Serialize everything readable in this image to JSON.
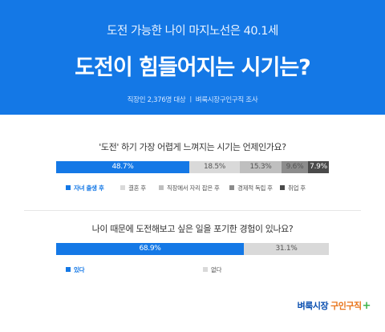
{
  "header": {
    "subtitle": "도전 가능한 나이 마지노선은 40.1세",
    "title": "도전이 힘들어지는 시기는?",
    "source": "직장인 2,376명 대상  ㅣ  벼룩시장구인구직 조사"
  },
  "colors": {
    "banner": "#1478e6",
    "primary": "#1478e6",
    "gray1": "#d6d6d6",
    "gray2": "#bfbfbf",
    "gray3": "#8c8c8c",
    "gray4": "#4a4a4a"
  },
  "chart_data": [
    {
      "type": "bar",
      "orientation": "horizontal-stacked-100",
      "title": "'도전' 하기 가장 어렵게 느껴지는 시기는 언제인가요?",
      "series": [
        {
          "name": "자녀 출생 후",
          "value": 48.7,
          "label": "48.7%",
          "color": "#1478e6"
        },
        {
          "name": "결혼 후",
          "value": 18.5,
          "label": "18.5%",
          "color": "#d9d9d9"
        },
        {
          "name": "직장에서 자리 잡은 후",
          "value": 15.3,
          "label": "15.3%",
          "color": "#bfbfbf"
        },
        {
          "name": "경제적 독립 후",
          "value": 9.6,
          "label": "9.6%",
          "color": "#8c8c8c"
        },
        {
          "name": "취업 후",
          "value": 7.9,
          "label": "7.9%",
          "color": "#4a4a4a"
        }
      ],
      "legend": "bottom"
    },
    {
      "type": "bar",
      "orientation": "horizontal-stacked-100",
      "title": "나이 때문에 도전해보고 싶은 일을 포기한 경험이 있나요?",
      "series": [
        {
          "name": "있다",
          "value": 68.9,
          "label": "68.9%",
          "color": "#1478e6"
        },
        {
          "name": "없다",
          "value": 31.1,
          "label": "31.1%",
          "color": "#d9d9d9"
        }
      ],
      "legend": "bottom"
    }
  ],
  "logo": {
    "part1": "벼룩시장",
    "part2": "구인구직",
    "plus": "+"
  }
}
